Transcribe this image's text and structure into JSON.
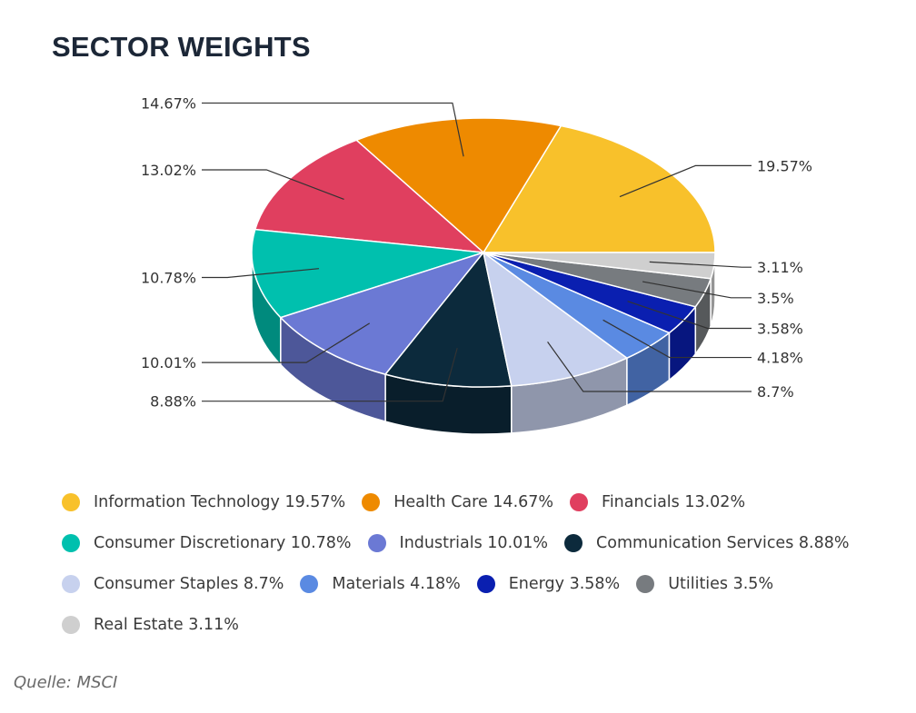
{
  "title": "SECTOR WEIGHTS",
  "source": "Quelle: MSCI",
  "chart_data": {
    "type": "pie",
    "title": "SECTOR WEIGHTS",
    "unit": "%",
    "slices": [
      {
        "name": "Information Technology",
        "value": 19.57,
        "label": "19.57%",
        "legend": "Information Technology 19.57%",
        "color": "#f8c12b"
      },
      {
        "name": "Health Care",
        "value": 14.67,
        "label": "14.67%",
        "legend": "Health Care 14.67%",
        "color": "#ee8a00"
      },
      {
        "name": "Financials",
        "value": 13.02,
        "label": "13.02%",
        "legend": "Financials 13.02%",
        "color": "#e03f5f"
      },
      {
        "name": "Consumer Discretionary",
        "value": 10.78,
        "label": "10.78%",
        "legend": "Consumer Discretionary 10.78%",
        "color": "#00c0ae"
      },
      {
        "name": "Industrials",
        "value": 10.01,
        "label": "10.01%",
        "legend": "Industrials 10.01%",
        "color": "#6b79d4"
      },
      {
        "name": "Communication Services",
        "value": 8.88,
        "label": "8.88%",
        "legend": "Communication Services 8.88%",
        "color": "#0c2a3c"
      },
      {
        "name": "Consumer Staples",
        "value": 8.7,
        "label": "8.7%",
        "legend": "Consumer Staples 8.7%",
        "color": "#c7d1ee"
      },
      {
        "name": "Materials",
        "value": 4.18,
        "label": "4.18%",
        "legend": "Materials 4.18%",
        "color": "#5a8ae2"
      },
      {
        "name": "Energy",
        "value": 3.58,
        "label": "3.58%",
        "legend": "Energy 3.58%",
        "color": "#0a1fb0"
      },
      {
        "name": "Utilities",
        "value": 3.5,
        "label": "3.5%",
        "legend": "Utilities 3.5%",
        "color": "#777b7f"
      },
      {
        "name": "Real Estate",
        "value": 3.11,
        "label": "3.11%",
        "legend": "Real Estate 3.11%",
        "color": "#cfcfcf"
      }
    ],
    "style": "3d",
    "legend_position": "bottom"
  }
}
